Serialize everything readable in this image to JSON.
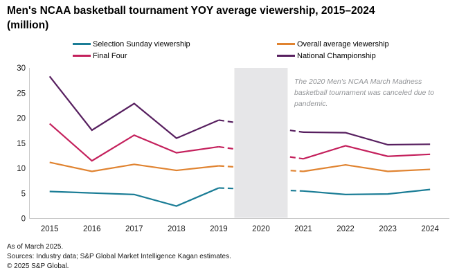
{
  "title": {
    "line1": "Men's NCAA basketball tournament YOY average viewership, 2015–2024",
    "line2": "(million)"
  },
  "legend": [
    {
      "label": "Selection Sunday viewership",
      "color": "#1B7D96"
    },
    {
      "label": "Final Four",
      "color": "#C4205C"
    },
    {
      "label": "Overall average viewership",
      "color": "#E08330"
    },
    {
      "label": "National Championship",
      "color": "#571F5F"
    }
  ],
  "annotation": {
    "text": "The 2020 Men's NCAA March Madness basketball tournament was canceled due to pandemic."
  },
  "footer": {
    "as_of": "As of March 2025.",
    "sources": "Sources: Industry data; S&P Global Market Intelligence Kagan estimates.",
    "copyright": "© 2025 S&P Global."
  },
  "chart_data": {
    "type": "line",
    "x": [
      2015,
      2016,
      2017,
      2018,
      2019,
      2020,
      2021,
      2022,
      2023,
      2024
    ],
    "series": [
      {
        "name": "Selection Sunday viewership",
        "color": "#1B7D96",
        "values": [
          5.4,
          5.1,
          4.8,
          2.5,
          6.1,
          null,
          5.5,
          4.8,
          4.9,
          5.8
        ]
      },
      {
        "name": "Overall average viewership",
        "color": "#E08330",
        "values": [
          11.2,
          9.4,
          10.8,
          9.6,
          10.5,
          null,
          9.4,
          10.7,
          9.4,
          9.8
        ]
      },
      {
        "name": "Final Four",
        "color": "#C4205C",
        "values": [
          18.9,
          11.5,
          16.6,
          13.1,
          14.3,
          null,
          11.9,
          14.5,
          12.4,
          12.8
        ]
      },
      {
        "name": "National Championship",
        "color": "#571F5F",
        "values": [
          28.3,
          17.6,
          22.9,
          16.0,
          19.6,
          null,
          17.2,
          17.1,
          14.7,
          14.8
        ]
      }
    ],
    "title": "Men's NCAA basketball tournament YOY average viewership, 2015–2024 (million)",
    "xlabel": "",
    "ylabel": "",
    "ylim": [
      0,
      30
    ],
    "yticks": [
      0,
      5,
      10,
      15,
      20,
      25,
      30
    ],
    "grid": false,
    "legend_position": "top",
    "gap_year": 2020,
    "gap_style": "gray band, dashed connector between 2019 and 2021",
    "axis_color": "#c9c9c9",
    "band_color": "#e6e6e8"
  }
}
